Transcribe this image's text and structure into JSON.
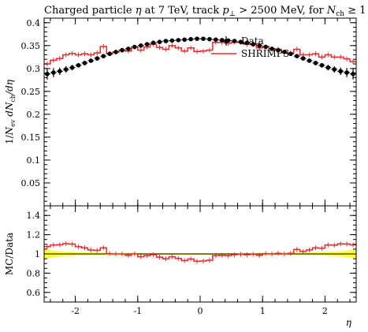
{
  "title": {
    "prefix": "Charged particle ",
    "eta": "η",
    "at": " at 7 TeV, track ",
    "p": "p",
    "perp": "⊥",
    "gt": " > 2500 MeV, for ",
    "N": "N",
    "ch": "ch",
    "ge": " ≥ 1"
  },
  "colors": {
    "data": "#000000",
    "mc": "#e8282a",
    "band": "#ffff33"
  },
  "chart_data": [
    {
      "type": "line",
      "panel": "main",
      "ylabel": "1/N_ev dN_ch/dη",
      "ylabel_parts": {
        "a": "1/",
        "Nev": "N",
        "ev": "ev",
        "dN": " dN",
        "ch": "ch",
        "deta": "/dη"
      },
      "xlim": [
        -2.5,
        2.5
      ],
      "ylim": [
        0.0,
        0.41
      ],
      "yticks": [
        0.05,
        0.1,
        0.15,
        0.2,
        0.25,
        0.3,
        0.35,
        0.4
      ],
      "ytick_labels": [
        "0.05",
        "0.1",
        "0.15",
        "0.2",
        "0.25",
        "0.3",
        "0.35",
        "0.4"
      ],
      "legend": {
        "placement": "top-right",
        "entries": [
          "Data",
          "SHRIMPS"
        ]
      },
      "series": [
        {
          "name": "Data",
          "style": "markers-errorbars",
          "x": [
            -2.45,
            -2.35,
            -2.25,
            -2.15,
            -2.05,
            -1.95,
            -1.85,
            -1.75,
            -1.65,
            -1.55,
            -1.45,
            -1.35,
            -1.25,
            -1.15,
            -1.05,
            -0.95,
            -0.85,
            -0.75,
            -0.65,
            -0.55,
            -0.45,
            -0.35,
            -0.25,
            -0.15,
            -0.05,
            0.05,
            0.15,
            0.25,
            0.35,
            0.45,
            0.55,
            0.65,
            0.75,
            0.85,
            0.95,
            1.05,
            1.15,
            1.25,
            1.35,
            1.45,
            1.55,
            1.65,
            1.75,
            1.85,
            1.95,
            2.05,
            2.15,
            2.25,
            2.35,
            2.45
          ],
          "y": [
            0.288,
            0.291,
            0.294,
            0.298,
            0.302,
            0.307,
            0.312,
            0.317,
            0.322,
            0.327,
            0.332,
            0.336,
            0.34,
            0.343,
            0.347,
            0.35,
            0.353,
            0.356,
            0.358,
            0.36,
            0.361,
            0.362,
            0.363,
            0.364,
            0.365,
            0.365,
            0.364,
            0.363,
            0.362,
            0.361,
            0.36,
            0.358,
            0.356,
            0.353,
            0.35,
            0.347,
            0.343,
            0.34,
            0.336,
            0.332,
            0.327,
            0.322,
            0.317,
            0.312,
            0.307,
            0.302,
            0.298,
            0.294,
            0.291,
            0.288
          ],
          "yerr": [
            0.012,
            0.01,
            0.008,
            0.007,
            0.006,
            0.005,
            0.005,
            0.004,
            0.004,
            0.004,
            0.003,
            0.003,
            0.003,
            0.003,
            0.003,
            0.003,
            0.003,
            0.003,
            0.003,
            0.003,
            0.003,
            0.003,
            0.003,
            0.003,
            0.003,
            0.003,
            0.003,
            0.003,
            0.003,
            0.003,
            0.003,
            0.003,
            0.003,
            0.003,
            0.003,
            0.003,
            0.003,
            0.003,
            0.003,
            0.003,
            0.004,
            0.004,
            0.004,
            0.005,
            0.005,
            0.006,
            0.007,
            0.008,
            0.01,
            0.012
          ]
        },
        {
          "name": "SHRIMPS",
          "style": "step",
          "x": [
            -2.45,
            -2.35,
            -2.25,
            -2.15,
            -2.05,
            -1.95,
            -1.85,
            -1.75,
            -1.65,
            -1.55,
            -1.45,
            -1.35,
            -1.25,
            -1.15,
            -1.05,
            -0.95,
            -0.85,
            -0.75,
            -0.65,
            -0.55,
            -0.45,
            -0.35,
            -0.25,
            -0.15,
            -0.05,
            0.05,
            0.15,
            0.25,
            0.35,
            0.45,
            0.55,
            0.65,
            0.75,
            0.85,
            0.95,
            1.05,
            1.15,
            1.25,
            1.35,
            1.45,
            1.55,
            1.65,
            1.75,
            1.85,
            1.95,
            2.05,
            2.15,
            2.25,
            2.35,
            2.45
          ],
          "y": [
            0.31,
            0.318,
            0.322,
            0.33,
            0.333,
            0.33,
            0.332,
            0.33,
            0.334,
            0.348,
            0.333,
            0.336,
            0.34,
            0.338,
            0.347,
            0.34,
            0.347,
            0.353,
            0.346,
            0.342,
            0.35,
            0.345,
            0.338,
            0.345,
            0.337,
            0.338,
            0.34,
            0.357,
            0.357,
            0.355,
            0.357,
            0.357,
            0.353,
            0.352,
            0.345,
            0.348,
            0.343,
            0.342,
            0.336,
            0.334,
            0.342,
            0.33,
            0.33,
            0.332,
            0.325,
            0.33,
            0.325,
            0.325,
            0.321,
            0.315
          ]
        }
      ]
    },
    {
      "type": "line",
      "panel": "ratio",
      "ylabel": "MC/Data",
      "xlabel": "η",
      "xlim": [
        -2.5,
        2.5
      ],
      "ylim": [
        0.5,
        1.5
      ],
      "xticks": [
        -2,
        -1,
        0,
        1,
        2
      ],
      "xtick_labels": [
        "-2",
        "-1",
        "0",
        "1",
        "2"
      ],
      "yticks": [
        0.6,
        0.8,
        1.0,
        1.2,
        1.4
      ],
      "ytick_labels": [
        "0.6",
        "0.8",
        "1",
        "1.2",
        "1.4"
      ],
      "series": [
        {
          "name": "Data uncertainty",
          "style": "band",
          "x": [
            -2.45,
            -2.35,
            -2.25,
            -2.15,
            -2.05,
            -1.95,
            -1.85,
            -1.75,
            -1.65,
            -1.55,
            -1.45,
            -1.35,
            -1.25,
            -1.15,
            -1.05,
            -0.95,
            -0.85,
            -0.75,
            -0.65,
            -0.55,
            -0.45,
            -0.35,
            -0.25,
            -0.15,
            -0.05,
            0.05,
            0.15,
            0.25,
            0.35,
            0.45,
            0.55,
            0.65,
            0.75,
            0.85,
            0.95,
            1.05,
            1.15,
            1.25,
            1.35,
            1.45,
            1.55,
            1.65,
            1.75,
            1.85,
            1.95,
            2.05,
            2.15,
            2.25,
            2.35,
            2.45
          ],
          "y": [
            0.042,
            0.034,
            0.027,
            0.023,
            0.02,
            0.016,
            0.016,
            0.013,
            0.012,
            0.012,
            0.009,
            0.009,
            0.009,
            0.009,
            0.009,
            0.009,
            0.008,
            0.008,
            0.008,
            0.008,
            0.008,
            0.008,
            0.008,
            0.008,
            0.008,
            0.008,
            0.008,
            0.008,
            0.008,
            0.008,
            0.008,
            0.008,
            0.008,
            0.008,
            0.009,
            0.009,
            0.009,
            0.009,
            0.009,
            0.009,
            0.012,
            0.012,
            0.013,
            0.016,
            0.016,
            0.02,
            0.023,
            0.027,
            0.034,
            0.042
          ]
        },
        {
          "name": "SHRIMPS / Data",
          "style": "step",
          "x": [
            -2.45,
            -2.35,
            -2.25,
            -2.15,
            -2.05,
            -1.95,
            -1.85,
            -1.75,
            -1.65,
            -1.55,
            -1.45,
            -1.35,
            -1.25,
            -1.15,
            -1.05,
            -0.95,
            -0.85,
            -0.75,
            -0.65,
            -0.55,
            -0.45,
            -0.35,
            -0.25,
            -0.15,
            -0.05,
            0.05,
            0.15,
            0.25,
            0.35,
            0.45,
            0.55,
            0.65,
            0.75,
            0.85,
            0.95,
            1.05,
            1.15,
            1.25,
            1.35,
            1.45,
            1.55,
            1.65,
            1.75,
            1.85,
            1.95,
            2.05,
            2.15,
            2.25,
            2.35,
            2.45
          ],
          "y": [
            1.076,
            1.093,
            1.095,
            1.107,
            1.102,
            1.075,
            1.064,
            1.041,
            1.037,
            1.064,
            1.003,
            1.0,
            1.0,
            0.985,
            1.0,
            0.971,
            0.983,
            0.992,
            0.966,
            0.95,
            0.97,
            0.953,
            0.931,
            0.948,
            0.923,
            0.926,
            0.934,
            0.983,
            0.986,
            0.983,
            0.992,
            0.997,
            0.992,
            0.997,
            0.986,
            1.003,
            1.0,
            1.006,
            1.0,
            1.006,
            1.046,
            1.025,
            1.041,
            1.064,
            1.059,
            1.093,
            1.091,
            1.105,
            1.103,
            1.094
          ]
        }
      ]
    }
  ]
}
